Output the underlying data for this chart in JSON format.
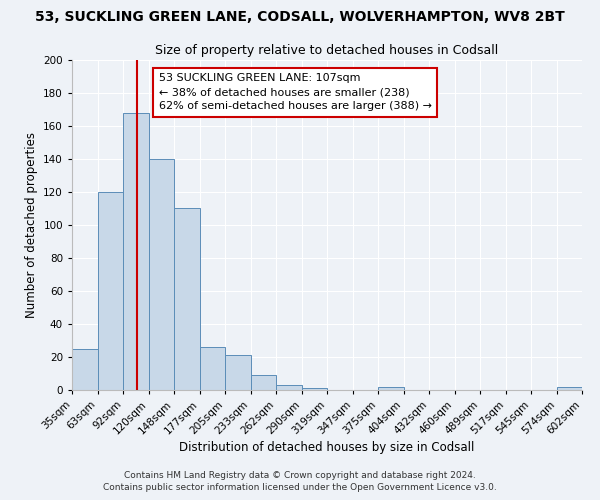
{
  "title": "53, SUCKLING GREEN LANE, CODSALL, WOLVERHAMPTON, WV8 2BT",
  "subtitle": "Size of property relative to detached houses in Codsall",
  "xlabel": "Distribution of detached houses by size in Codsall",
  "ylabel": "Number of detached properties",
  "bar_color": "#c8d8e8",
  "bar_edge_color": "#5b8db8",
  "bin_labels": [
    "35sqm",
    "63sqm",
    "92sqm",
    "120sqm",
    "148sqm",
    "177sqm",
    "205sqm",
    "233sqm",
    "262sqm",
    "290sqm",
    "319sqm",
    "347sqm",
    "375sqm",
    "404sqm",
    "432sqm",
    "460sqm",
    "489sqm",
    "517sqm",
    "545sqm",
    "574sqm",
    "602sqm"
  ],
  "bar_values": [
    25,
    120,
    168,
    140,
    110,
    26,
    21,
    9,
    3,
    1,
    0,
    0,
    2,
    0,
    0,
    0,
    0,
    0,
    0,
    2
  ],
  "ylim": [
    0,
    200
  ],
  "yticks": [
    0,
    20,
    40,
    60,
    80,
    100,
    120,
    140,
    160,
    180,
    200
  ],
  "annotation_line1": "53 SUCKLING GREEN LANE: 107sqm",
  "annotation_line2": "← 38% of detached houses are smaller (238)",
  "annotation_line3": "62% of semi-detached houses are larger (388) →",
  "annotation_box_color": "#ffffff",
  "annotation_box_edge_color": "#cc0000",
  "footer_line1": "Contains HM Land Registry data © Crown copyright and database right 2024.",
  "footer_line2": "Contains public sector information licensed under the Open Government Licence v3.0.",
  "background_color": "#eef2f7",
  "grid_color": "#ffffff",
  "vline_color": "#cc0000",
  "title_fontsize": 10,
  "subtitle_fontsize": 9,
  "axis_label_fontsize": 8.5,
  "tick_fontsize": 7.5,
  "annotation_fontsize": 8,
  "footer_fontsize": 6.5
}
